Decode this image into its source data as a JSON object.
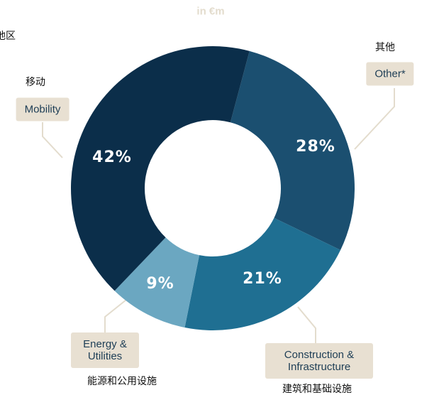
{
  "chart_data": {
    "type": "pie",
    "donut": true,
    "subtitle": "in €m",
    "region_label": "地区",
    "categories": [
      "Other*",
      "Construction & Infrastructure",
      "Energy & Utilities",
      "Mobility"
    ],
    "values": [
      28,
      21,
      9,
      42
    ],
    "value_labels": [
      "28%",
      "21%",
      "9%",
      "42%"
    ],
    "colors": [
      "#1b4f70",
      "#1f6f92",
      "#6ba7c1",
      "#0b2e4a"
    ],
    "category_translations": [
      "其他",
      "建筑和基础设施",
      "能源和公用设施",
      "移动"
    ]
  }
}
